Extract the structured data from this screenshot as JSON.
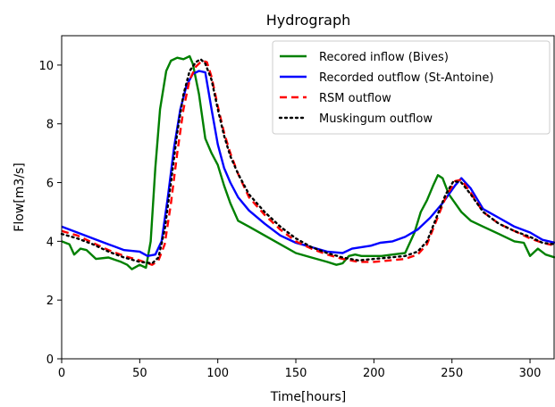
{
  "chart_data": {
    "type": "line",
    "title": "Hydrograph",
    "xlabel": "Time[hours]",
    "ylabel": "Flow[m3/s]",
    "xlim": [
      0,
      316
    ],
    "ylim": [
      0,
      11
    ],
    "xticks": [
      0,
      50,
      100,
      150,
      200,
      250,
      300
    ],
    "yticks": [
      0,
      2,
      4,
      6,
      8,
      10
    ],
    "grid": false,
    "legend": "top-right",
    "series": [
      {
        "name": "Recored inflow (Bives)",
        "color": "#008000",
        "dash": "solid",
        "x": [
          0,
          5,
          8,
          12,
          16,
          22,
          30,
          38,
          42,
          45,
          50,
          54,
          57,
          60,
          63,
          67,
          70,
          74,
          78,
          82,
          84,
          88,
          92,
          96,
          100,
          104,
          108,
          113,
          120,
          130,
          140,
          150,
          160,
          170,
          176,
          180,
          184,
          188,
          192,
          198,
          205,
          212,
          220,
          226,
          230,
          234,
          238,
          241,
          244,
          248,
          252,
          256,
          262,
          270,
          280,
          290,
          296,
          300,
          305,
          310,
          316
        ],
        "y": [
          4.0,
          3.9,
          3.55,
          3.75,
          3.7,
          3.4,
          3.45,
          3.3,
          3.2,
          3.05,
          3.2,
          3.1,
          4.0,
          6.5,
          8.5,
          9.8,
          10.15,
          10.25,
          10.2,
          10.3,
          10.05,
          9.0,
          7.5,
          7.0,
          6.6,
          5.9,
          5.3,
          4.7,
          4.5,
          4.2,
          3.9,
          3.6,
          3.45,
          3.3,
          3.2,
          3.25,
          3.5,
          3.55,
          3.5,
          3.5,
          3.5,
          3.55,
          3.6,
          4.3,
          5.0,
          5.4,
          5.9,
          6.25,
          6.15,
          5.6,
          5.3,
          5.0,
          4.7,
          4.5,
          4.25,
          4.0,
          3.95,
          3.5,
          3.75,
          3.55,
          3.45
        ]
      },
      {
        "name": "Recorded outflow (St-Antoine)",
        "color": "#0000ff",
        "dash": "solid",
        "x": [
          0,
          10,
          20,
          30,
          40,
          50,
          55,
          60,
          64,
          68,
          72,
          76,
          80,
          84,
          88,
          92,
          96,
          100,
          104,
          108,
          113,
          120,
          130,
          140,
          150,
          160,
          170,
          180,
          186,
          192,
          198,
          204,
          212,
          220,
          228,
          236,
          244,
          248,
          252,
          256,
          262,
          270,
          280,
          290,
          300,
          308,
          316
        ],
        "y": [
          4.5,
          4.3,
          4.1,
          3.9,
          3.7,
          3.65,
          3.5,
          3.55,
          4.0,
          5.5,
          7.2,
          8.5,
          9.3,
          9.7,
          9.8,
          9.75,
          8.5,
          7.3,
          6.5,
          6.0,
          5.5,
          5.05,
          4.6,
          4.2,
          3.95,
          3.8,
          3.65,
          3.6,
          3.75,
          3.8,
          3.85,
          3.95,
          4.0,
          4.15,
          4.4,
          4.8,
          5.3,
          5.6,
          5.9,
          6.15,
          5.8,
          5.1,
          4.8,
          4.5,
          4.3,
          4.05,
          3.95
        ]
      },
      {
        "name": "RSM outflow",
        "color": "#ff0000",
        "dash": "dashed",
        "x": [
          0,
          10,
          20,
          30,
          40,
          50,
          58,
          62,
          66,
          70,
          74,
          78,
          82,
          86,
          90,
          93,
          96,
          100,
          104,
          108,
          113,
          120,
          130,
          140,
          150,
          160,
          170,
          180,
          190,
          200,
          210,
          220,
          228,
          234,
          240,
          246,
          252,
          256,
          262,
          270,
          280,
          290,
          300,
          308,
          316
        ],
        "y": [
          4.35,
          4.2,
          3.95,
          3.7,
          3.5,
          3.35,
          3.2,
          3.35,
          3.9,
          5.3,
          7.0,
          8.5,
          9.5,
          9.95,
          10.15,
          10.1,
          9.6,
          8.6,
          7.7,
          7.0,
          6.3,
          5.5,
          4.9,
          4.4,
          4.0,
          3.75,
          3.55,
          3.4,
          3.3,
          3.3,
          3.35,
          3.4,
          3.55,
          3.9,
          4.7,
          5.5,
          6.05,
          6.1,
          5.65,
          5.0,
          4.6,
          4.35,
          4.1,
          3.95,
          3.85
        ]
      },
      {
        "name": "Muskingum outflow",
        "color": "#000000",
        "dash": "dotted",
        "x": [
          0,
          10,
          20,
          30,
          40,
          50,
          58,
          62,
          66,
          70,
          74,
          78,
          82,
          86,
          89,
          92,
          96,
          100,
          104,
          108,
          113,
          120,
          130,
          140,
          150,
          160,
          170,
          180,
          190,
          200,
          210,
          220,
          228,
          234,
          240,
          246,
          251,
          256,
          262,
          270,
          280,
          290,
          300,
          308,
          316
        ],
        "y": [
          4.25,
          4.1,
          3.9,
          3.65,
          3.45,
          3.3,
          3.25,
          3.45,
          4.4,
          6.0,
          7.7,
          9.0,
          9.8,
          10.1,
          10.2,
          10.05,
          9.5,
          8.5,
          7.6,
          6.9,
          6.3,
          5.6,
          5.0,
          4.5,
          4.1,
          3.8,
          3.6,
          3.45,
          3.35,
          3.4,
          3.45,
          3.5,
          3.65,
          4.0,
          4.8,
          5.6,
          6.05,
          6.0,
          5.6,
          5.0,
          4.6,
          4.35,
          4.15,
          3.95,
          3.9
        ]
      }
    ]
  }
}
